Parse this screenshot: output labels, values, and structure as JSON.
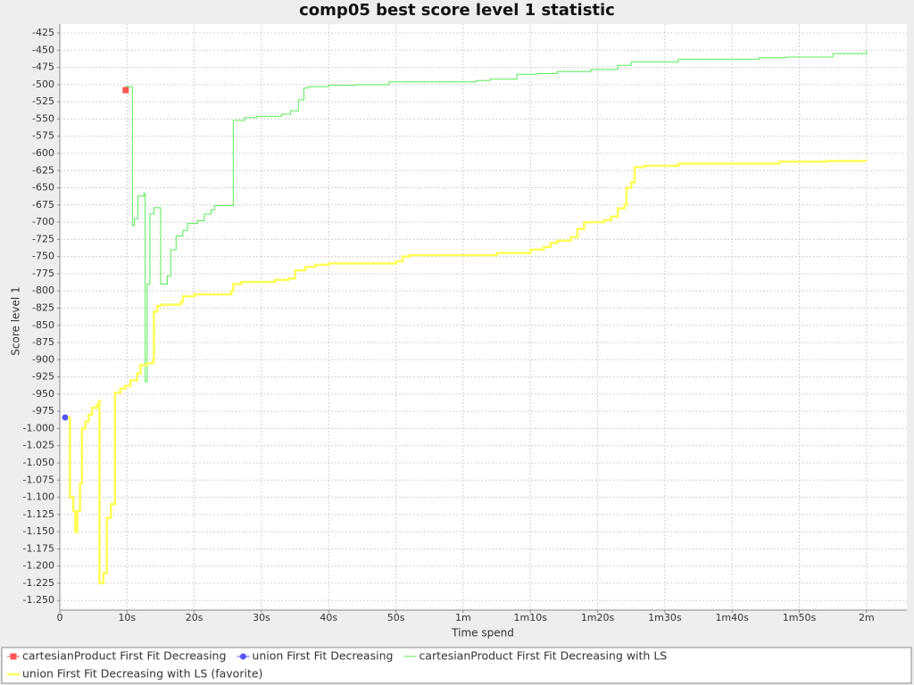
{
  "chart_data": {
    "type": "line",
    "step": true,
    "title": "comp05 best score level 1 statistic",
    "x_label": "Time spend",
    "y_label": "Score level 1",
    "xlim": [
      0,
      126
    ],
    "ylim": [
      -1264,
      -412
    ],
    "grid": true,
    "xticks": [
      {
        "value": 0,
        "label": "0"
      },
      {
        "value": 10,
        "label": "10s"
      },
      {
        "value": 20,
        "label": "20s"
      },
      {
        "value": 30,
        "label": "30s"
      },
      {
        "value": 40,
        "label": "40s"
      },
      {
        "value": 50,
        "label": "50s"
      },
      {
        "value": 60,
        "label": "1m"
      },
      {
        "value": 70,
        "label": "1m10s"
      },
      {
        "value": 80,
        "label": "1m20s"
      },
      {
        "value": 90,
        "label": "1m30s"
      },
      {
        "value": 100,
        "label": "1m40s"
      },
      {
        "value": 110,
        "label": "1m50s"
      },
      {
        "value": 120,
        "label": "2m"
      }
    ],
    "yticks": [
      -425,
      -450,
      -475,
      -500,
      -525,
      -550,
      -575,
      -600,
      -625,
      -650,
      -675,
      -700,
      -725,
      -750,
      -775,
      -800,
      -825,
      -850,
      -875,
      -900,
      -925,
      -950,
      -975,
      {
        "value": -1000,
        "label": "-1.000"
      },
      {
        "value": -1025,
        "label": "-1.025"
      },
      {
        "value": -1050,
        "label": "-1.050"
      },
      {
        "value": -1075,
        "label": "-1.075"
      },
      {
        "value": -1100,
        "label": "-1.100"
      },
      {
        "value": -1125,
        "label": "-1.125"
      },
      {
        "value": -1150,
        "label": "-1.150"
      },
      {
        "value": -1175,
        "label": "-1.175"
      },
      {
        "value": -1200,
        "label": "-1.200"
      },
      {
        "value": -1225,
        "label": "-1.225"
      },
      {
        "value": -1250,
        "label": "-1.250"
      }
    ],
    "legend": "bottom",
    "series": [
      {
        "name": "cartesianProduct First Fit Decreasing",
        "color": "#ff5555",
        "marker": "square",
        "x": [
          9.8
        ],
        "values": [
          -508
        ]
      },
      {
        "name": "union First Fit Decreasing",
        "color": "#5555ff",
        "marker": "circle",
        "x": [
          0.8
        ],
        "values": [
          -984
        ]
      },
      {
        "name": "cartesianProduct First Fit Decreasing with LS",
        "color": "#55ee55",
        "width": 1,
        "x": [
          9.8,
          10.8,
          11.1,
          11.6,
          12.5,
          12.7,
          13.0,
          13.4,
          14.0,
          15.0,
          16.0,
          16.5,
          17.3,
          18.3,
          19.0,
          20.5,
          21.5,
          22.5,
          23.0,
          25.8,
          27.5,
          29.3,
          33.0,
          34.3,
          35.5,
          36.3,
          37,
          40,
          44,
          49,
          62,
          64,
          68,
          71,
          74,
          79,
          83,
          85,
          92,
          104,
          108,
          115,
          120
        ],
        "values": [
          -503,
          -705,
          -695,
          -662,
          -658,
          -932,
          -790,
          -688,
          -679,
          -790,
          -778,
          -740,
          -720,
          -712,
          -702,
          -698,
          -688,
          -682,
          -676,
          -552,
          -548,
          -546,
          -543,
          -538,
          -522,
          -505,
          -503,
          -501,
          -500,
          -496,
          -494,
          -492,
          -485,
          -484,
          -481,
          -478,
          -472,
          -467,
          -463,
          -461,
          -460,
          -455,
          -450
        ]
      },
      {
        "name": "union First Fit Decreasing with LS (favorite)",
        "color": "#ffff55",
        "width": 2.5,
        "x": [
          1.2,
          1.5,
          2.0,
          2.3,
          2.6,
          3.0,
          3.3,
          3.8,
          4.3,
          4.8,
          5.5,
          5.8,
          5.9,
          6.5,
          7.0,
          7.6,
          8.2,
          9.0,
          9.7,
          10.5,
          11.5,
          12.0,
          13.0,
          13.9,
          14.0,
          14.5,
          15,
          18,
          18.3,
          20,
          25.5,
          25.8,
          27,
          32,
          34,
          35,
          36.5,
          38,
          40,
          50,
          51,
          52,
          65,
          70,
          72,
          73,
          74,
          76,
          77,
          78,
          81,
          82,
          83,
          84,
          84.3,
          85,
          85.5,
          87,
          92,
          107,
          114,
          120
        ],
        "values": [
          -984,
          -1100,
          -1120,
          -1150,
          -1120,
          -1080,
          -1000,
          -990,
          -980,
          -970,
          -966,
          -960,
          -1225,
          -1210,
          -1130,
          -1110,
          -948,
          -942,
          -938,
          -930,
          -920,
          -908,
          -905,
          -900,
          -830,
          -822,
          -820,
          -816,
          -808,
          -805,
          -800,
          -790,
          -787,
          -784,
          -782,
          -770,
          -765,
          -762,
          -760,
          -757,
          -750,
          -748,
          -745,
          -740,
          -736,
          -730,
          -727,
          -722,
          -710,
          -700,
          -697,
          -692,
          -680,
          -675,
          -650,
          -642,
          -620,
          -618,
          -615,
          -612,
          -611,
          -611
        ]
      }
    ]
  }
}
